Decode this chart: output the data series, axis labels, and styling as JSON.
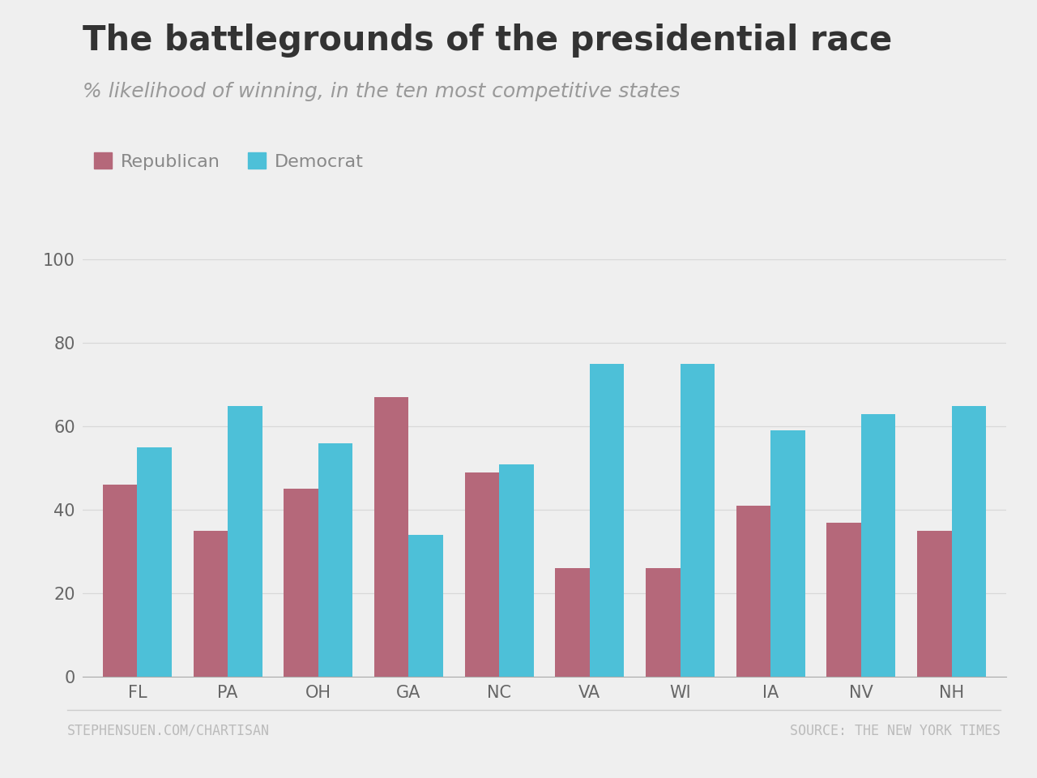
{
  "title": "The battlegrounds of the presidential race",
  "subtitle": "% likelihood of winning, in the ten most competitive states",
  "categories": [
    "FL",
    "PA",
    "OH",
    "GA",
    "NC",
    "VA",
    "WI",
    "IA",
    "NV",
    "NH"
  ],
  "republican": [
    46,
    35,
    45,
    67,
    49,
    26,
    26,
    41,
    37,
    35
  ],
  "democrat": [
    55,
    65,
    56,
    34,
    51,
    75,
    75,
    59,
    63,
    65
  ],
  "rep_color": "#b5687a",
  "dem_color": "#4dc0d8",
  "background_color": "#efefef",
  "title_fontsize": 30,
  "subtitle_fontsize": 18,
  "tick_fontsize": 15,
  "legend_fontsize": 16,
  "footer_fontsize": 12,
  "ylim": [
    0,
    110
  ],
  "yticks": [
    0,
    20,
    40,
    60,
    80,
    100
  ],
  "footer_left": "STEPHENSUEN.COM/CHARTISAN",
  "footer_right": "SOURCE: THE NEW YORK TIMES",
  "grid_color": "#d8d8d8",
  "bar_width": 0.38
}
